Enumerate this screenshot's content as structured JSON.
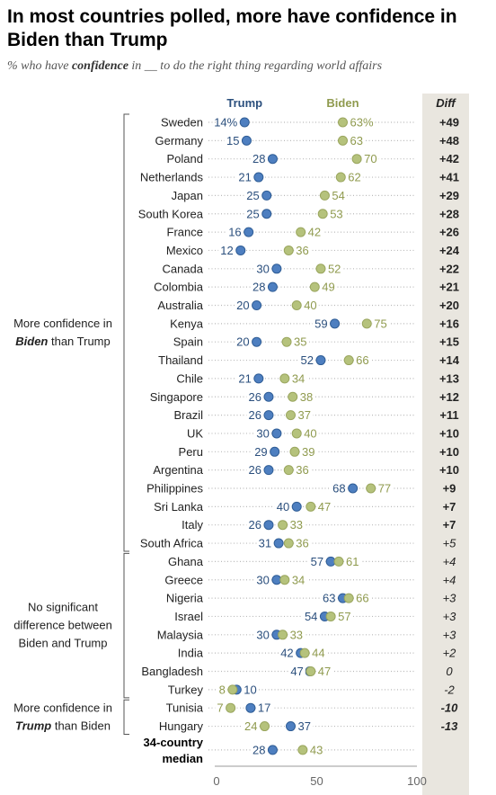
{
  "header": {
    "title": "In most countries polled, more have confidence in Biden than Trump",
    "subtitle_pre": "% who have ",
    "subtitle_bold": "confidence",
    "subtitle_post": " in __ to do the right thing regarding world affairs"
  },
  "legend": {
    "trump": "Trump",
    "biden": "Biden",
    "diff": "Diff"
  },
  "groups": [
    {
      "label_lines": [
        "More confidence in",
        "Biden than Trump"
      ],
      "italic_word": "Biden",
      "first_row": 0,
      "last_row": 23
    },
    {
      "label_lines": [
        "No significant",
        "difference between",
        "Biden and Trump"
      ],
      "italic_word": "",
      "first_row": 24,
      "last_row": 31
    },
    {
      "label_lines": [
        "More confidence in",
        "Trump than Biden"
      ],
      "italic_word": "Trump",
      "first_row": 32,
      "last_row": 33
    }
  ],
  "colors": {
    "trump": "#4e7fc0",
    "biden": "#b5c27c",
    "trump_text": "#2b4f7d",
    "biden_text": "#8f9a4e",
    "diff_bg": "#e9e6df",
    "dots": "#b9b9b9"
  },
  "chart_data": {
    "type": "dot",
    "xlim": [
      0,
      100
    ],
    "xticks": [
      0,
      50,
      100
    ],
    "rows": [
      {
        "country": "Sweden",
        "trump": 14,
        "biden": 63,
        "trump_label": "14%",
        "biden_label": "63%",
        "diff": "+49"
      },
      {
        "country": "Germany",
        "trump": 15,
        "biden": 63,
        "trump_label": "15",
        "biden_label": "63",
        "diff": "+48"
      },
      {
        "country": "Poland",
        "trump": 28,
        "biden": 70,
        "trump_label": "28",
        "biden_label": "70",
        "diff": "+42"
      },
      {
        "country": "Netherlands",
        "trump": 21,
        "biden": 62,
        "trump_label": "21",
        "biden_label": "62",
        "diff": "+41"
      },
      {
        "country": "Japan",
        "trump": 25,
        "biden": 54,
        "trump_label": "25",
        "biden_label": "54",
        "diff": "+29"
      },
      {
        "country": "South Korea",
        "trump": 25,
        "biden": 53,
        "trump_label": "25",
        "biden_label": "53",
        "diff": "+28"
      },
      {
        "country": "France",
        "trump": 16,
        "biden": 42,
        "trump_label": "16",
        "biden_label": "42",
        "diff": "+26"
      },
      {
        "country": "Mexico",
        "trump": 12,
        "biden": 36,
        "trump_label": "12",
        "biden_label": "36",
        "diff": "+24"
      },
      {
        "country": "Canada",
        "trump": 30,
        "biden": 52,
        "trump_label": "30",
        "biden_label": "52",
        "diff": "+22"
      },
      {
        "country": "Colombia",
        "trump": 28,
        "biden": 49,
        "trump_label": "28",
        "biden_label": "49",
        "diff": "+21"
      },
      {
        "country": "Australia",
        "trump": 20,
        "biden": 40,
        "trump_label": "20",
        "biden_label": "40",
        "diff": "+20"
      },
      {
        "country": "Kenya",
        "trump": 59,
        "biden": 75,
        "trump_label": "59",
        "biden_label": "75",
        "diff": "+16"
      },
      {
        "country": "Spain",
        "trump": 20,
        "biden": 35,
        "trump_label": "20",
        "biden_label": "35",
        "diff": "+15"
      },
      {
        "country": "Thailand",
        "trump": 52,
        "biden": 66,
        "trump_label": "52",
        "biden_label": "66",
        "diff": "+14"
      },
      {
        "country": "Chile",
        "trump": 21,
        "biden": 34,
        "trump_label": "21",
        "biden_label": "34",
        "diff": "+13"
      },
      {
        "country": "Singapore",
        "trump": 26,
        "biden": 38,
        "trump_label": "26",
        "biden_label": "38",
        "diff": "+12"
      },
      {
        "country": "Brazil",
        "trump": 26,
        "biden": 37,
        "trump_label": "26",
        "biden_label": "37",
        "diff": "+11"
      },
      {
        "country": "UK",
        "trump": 30,
        "biden": 40,
        "trump_label": "30",
        "biden_label": "40",
        "diff": "+10"
      },
      {
        "country": "Peru",
        "trump": 29,
        "biden": 39,
        "trump_label": "29",
        "biden_label": "39",
        "diff": "+10"
      },
      {
        "country": "Argentina",
        "trump": 26,
        "biden": 36,
        "trump_label": "26",
        "biden_label": "36",
        "diff": "+10"
      },
      {
        "country": "Philippines",
        "trump": 68,
        "biden": 77,
        "trump_label": "68",
        "biden_label": "77",
        "diff": "+9"
      },
      {
        "country": "Sri Lanka",
        "trump": 40,
        "biden": 47,
        "trump_label": "40",
        "biden_label": "47",
        "diff": "+7"
      },
      {
        "country": "Italy",
        "trump": 26,
        "biden": 33,
        "trump_label": "26",
        "biden_label": "33",
        "diff": "+7"
      },
      {
        "country": "South Africa",
        "trump": 31,
        "biden": 36,
        "trump_label": "31",
        "biden_label": "36",
        "diff": "+5"
      },
      {
        "country": "Ghana",
        "trump": 57,
        "biden": 61,
        "trump_label": "57",
        "biden_label": "61",
        "diff": "+4"
      },
      {
        "country": "Greece",
        "trump": 30,
        "biden": 34,
        "trump_label": "30",
        "biden_label": "34",
        "diff": "+4"
      },
      {
        "country": "Nigeria",
        "trump": 63,
        "biden": 66,
        "trump_label": "63",
        "biden_label": "66",
        "diff": "+3"
      },
      {
        "country": "Israel",
        "trump": 54,
        "biden": 57,
        "trump_label": "54",
        "biden_label": "57",
        "diff": "+3"
      },
      {
        "country": "Malaysia",
        "trump": 30,
        "biden": 33,
        "trump_label": "30",
        "biden_label": "33",
        "diff": "+3"
      },
      {
        "country": "India",
        "trump": 42,
        "biden": 44,
        "trump_label": "42",
        "biden_label": "44",
        "diff": "+2"
      },
      {
        "country": "Bangladesh",
        "trump": 47,
        "biden": 47,
        "trump_label": "47",
        "biden_label": "47",
        "diff": "0"
      },
      {
        "country": "Turkey",
        "trump": 10,
        "biden": 8,
        "trump_label": "10",
        "biden_label": "8",
        "diff": "-2"
      },
      {
        "country": "Tunisia",
        "trump": 17,
        "biden": 7,
        "trump_label": "17",
        "biden_label": "7",
        "diff": "-10"
      },
      {
        "country": "Hungary",
        "trump": 37,
        "biden": 24,
        "trump_label": "37",
        "biden_label": "24",
        "diff": "-13"
      },
      {
        "country": "34-country median",
        "trump": 28,
        "biden": 43,
        "trump_label": "28",
        "biden_label": "43",
        "diff": "",
        "median": true
      }
    ]
  }
}
